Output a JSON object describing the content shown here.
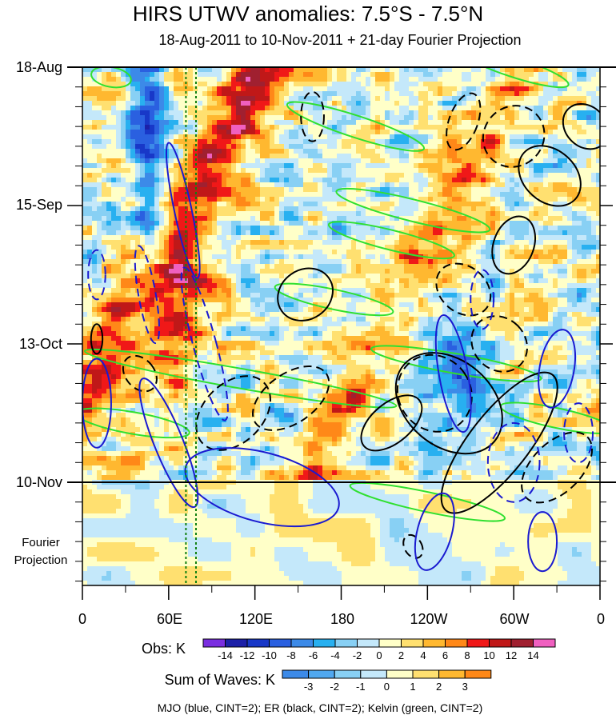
{
  "chart_data": {
    "type": "heatmap",
    "title": "HIRS UTWV anomalies: 7.5°S - 7.5°N",
    "subtitle": "18-Aug-2011 to 10-Nov-2011 + 21-day Fourier Projection",
    "x_tick_labels": [
      "0",
      "60E",
      "120E",
      "180",
      "120W",
      "60W",
      "0"
    ],
    "x_range": [
      0,
      360
    ],
    "y_tick_labels": [
      "18-Aug",
      "15-Sep",
      "13-Oct",
      "10-Nov"
    ],
    "y_range_days": [
      0,
      105
    ],
    "projection_label": [
      "Fourier",
      "Projection"
    ],
    "obs_colorbar": {
      "label": "Obs: K",
      "ticks": [
        "-14",
        "-12",
        "-10",
        "-8",
        "-6",
        "-4",
        "-2",
        "0",
        "2",
        "4",
        "6",
        "8",
        "10",
        "12",
        "14"
      ],
      "colors": [
        "#7a2ee0",
        "#1c20a8",
        "#1838c8",
        "#2a60e0",
        "#3c8ae8",
        "#28b0f0",
        "#88d0f4",
        "#c4e8fa",
        "#ffffc8",
        "#ffe070",
        "#ffb830",
        "#ff8818",
        "#f01818",
        "#c01818",
        "#a02030",
        "#f060c0"
      ]
    },
    "waves_colorbar": {
      "label": "Sum of Waves: K",
      "ticks": [
        "-3",
        "-2",
        "-1",
        "0",
        "1",
        "2",
        "3"
      ],
      "colors": [
        "#3c8ae8",
        "#50a8f0",
        "#88d0f4",
        "#c4e8fa",
        "#ffffc8",
        "#ffe070",
        "#ffb830",
        "#ff8818"
      ]
    },
    "legend_note": "MJO (blue, CINT=2); ER (black, CINT=2); Kelvin (green, CINT=2)"
  },
  "colors": {
    "mjo": "#1a1ad0",
    "er": "#000000",
    "kelvin": "#30e030",
    "marker": "#108010"
  }
}
